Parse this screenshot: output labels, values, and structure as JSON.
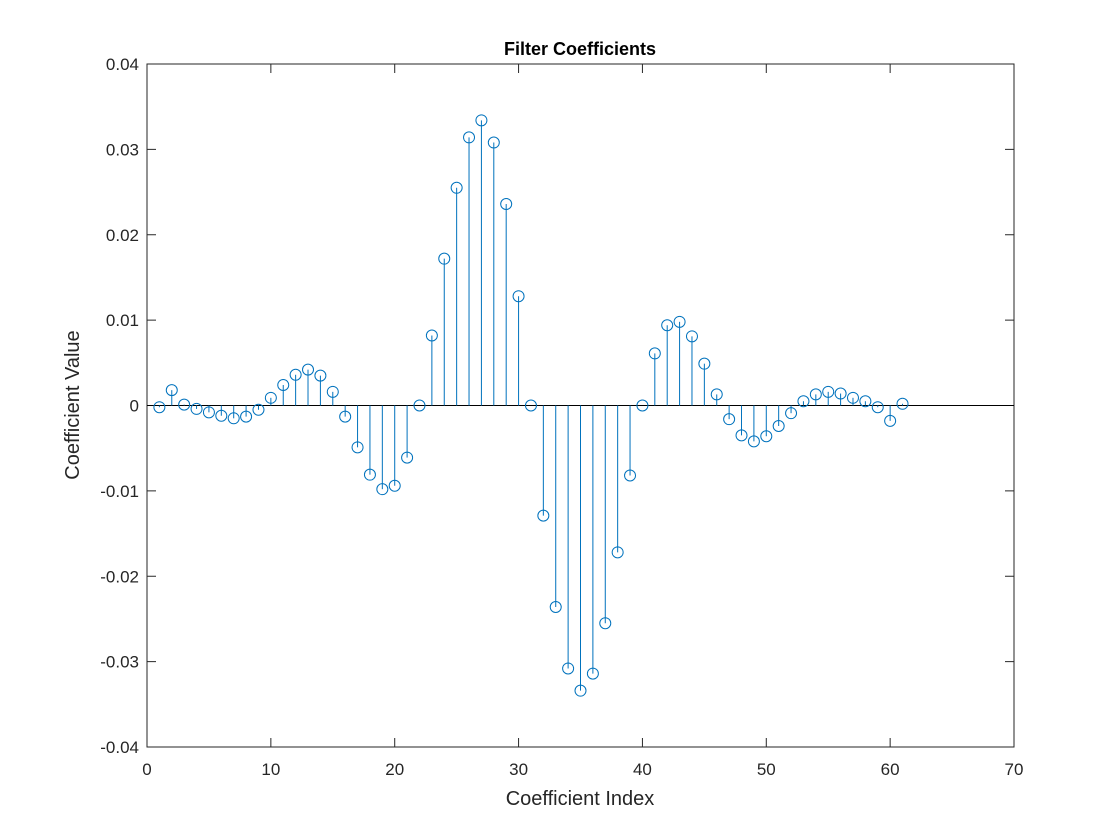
{
  "chart_data": {
    "type": "stem",
    "title": "Filter Coefficients",
    "xlabel": "Coefficient Index",
    "ylabel": "Coefficient Value",
    "xlim": [
      0,
      70
    ],
    "ylim": [
      -0.04,
      0.04
    ],
    "xticks": [
      0,
      10,
      20,
      30,
      40,
      50,
      60,
      70
    ],
    "yticks": [
      -0.04,
      -0.03,
      -0.02,
      -0.01,
      0,
      0.01,
      0.02,
      0.03,
      0.04
    ],
    "xtick_labels": [
      "0",
      "10",
      "20",
      "30",
      "40",
      "50",
      "60",
      "70"
    ],
    "ytick_labels": [
      "-0.04",
      "-0.03",
      "-0.02",
      "-0.01",
      "0",
      "0.01",
      "0.02",
      "0.03",
      "0.04"
    ],
    "grid": false,
    "series": [
      {
        "color": "#0072BD",
        "marker": "circle-open",
        "x": [
          1,
          2,
          3,
          4,
          5,
          6,
          7,
          8,
          9,
          10,
          11,
          12,
          13,
          14,
          15,
          16,
          17,
          18,
          19,
          20,
          21,
          22,
          23,
          24,
          25,
          26,
          27,
          28,
          29,
          30,
          31,
          32,
          33,
          34,
          35,
          36,
          37,
          38,
          39,
          40,
          41,
          42,
          43,
          44,
          45,
          46,
          47,
          48,
          49,
          50,
          51,
          52,
          53,
          54,
          55,
          56,
          57,
          58,
          59,
          60,
          61
        ],
        "y": [
          -0.0002,
          0.0018,
          0.0001,
          -0.0004,
          -0.0008,
          -0.0012,
          -0.0015,
          -0.0013,
          -0.0005,
          0.0009,
          0.0024,
          0.0036,
          0.0042,
          0.0035,
          0.0016,
          -0.0013,
          -0.0049,
          -0.0081,
          -0.0098,
          -0.0094,
          -0.0061,
          0.0,
          0.0082,
          0.0172,
          0.0255,
          0.0314,
          0.0334,
          0.0308,
          0.0236,
          0.0128,
          0.0,
          -0.0129,
          -0.0236,
          -0.0308,
          -0.0334,
          -0.0314,
          -0.0255,
          -0.0172,
          -0.0082,
          0.0,
          0.0061,
          0.0094,
          0.0098,
          0.0081,
          0.0049,
          0.0013,
          -0.0016,
          -0.0035,
          -0.0042,
          -0.0036,
          -0.0024,
          -0.0009,
          0.0005,
          0.0013,
          0.0016,
          0.0014,
          0.0009,
          0.0005,
          -0.0002,
          -0.0018,
          0.0002
        ]
      }
    ]
  }
}
